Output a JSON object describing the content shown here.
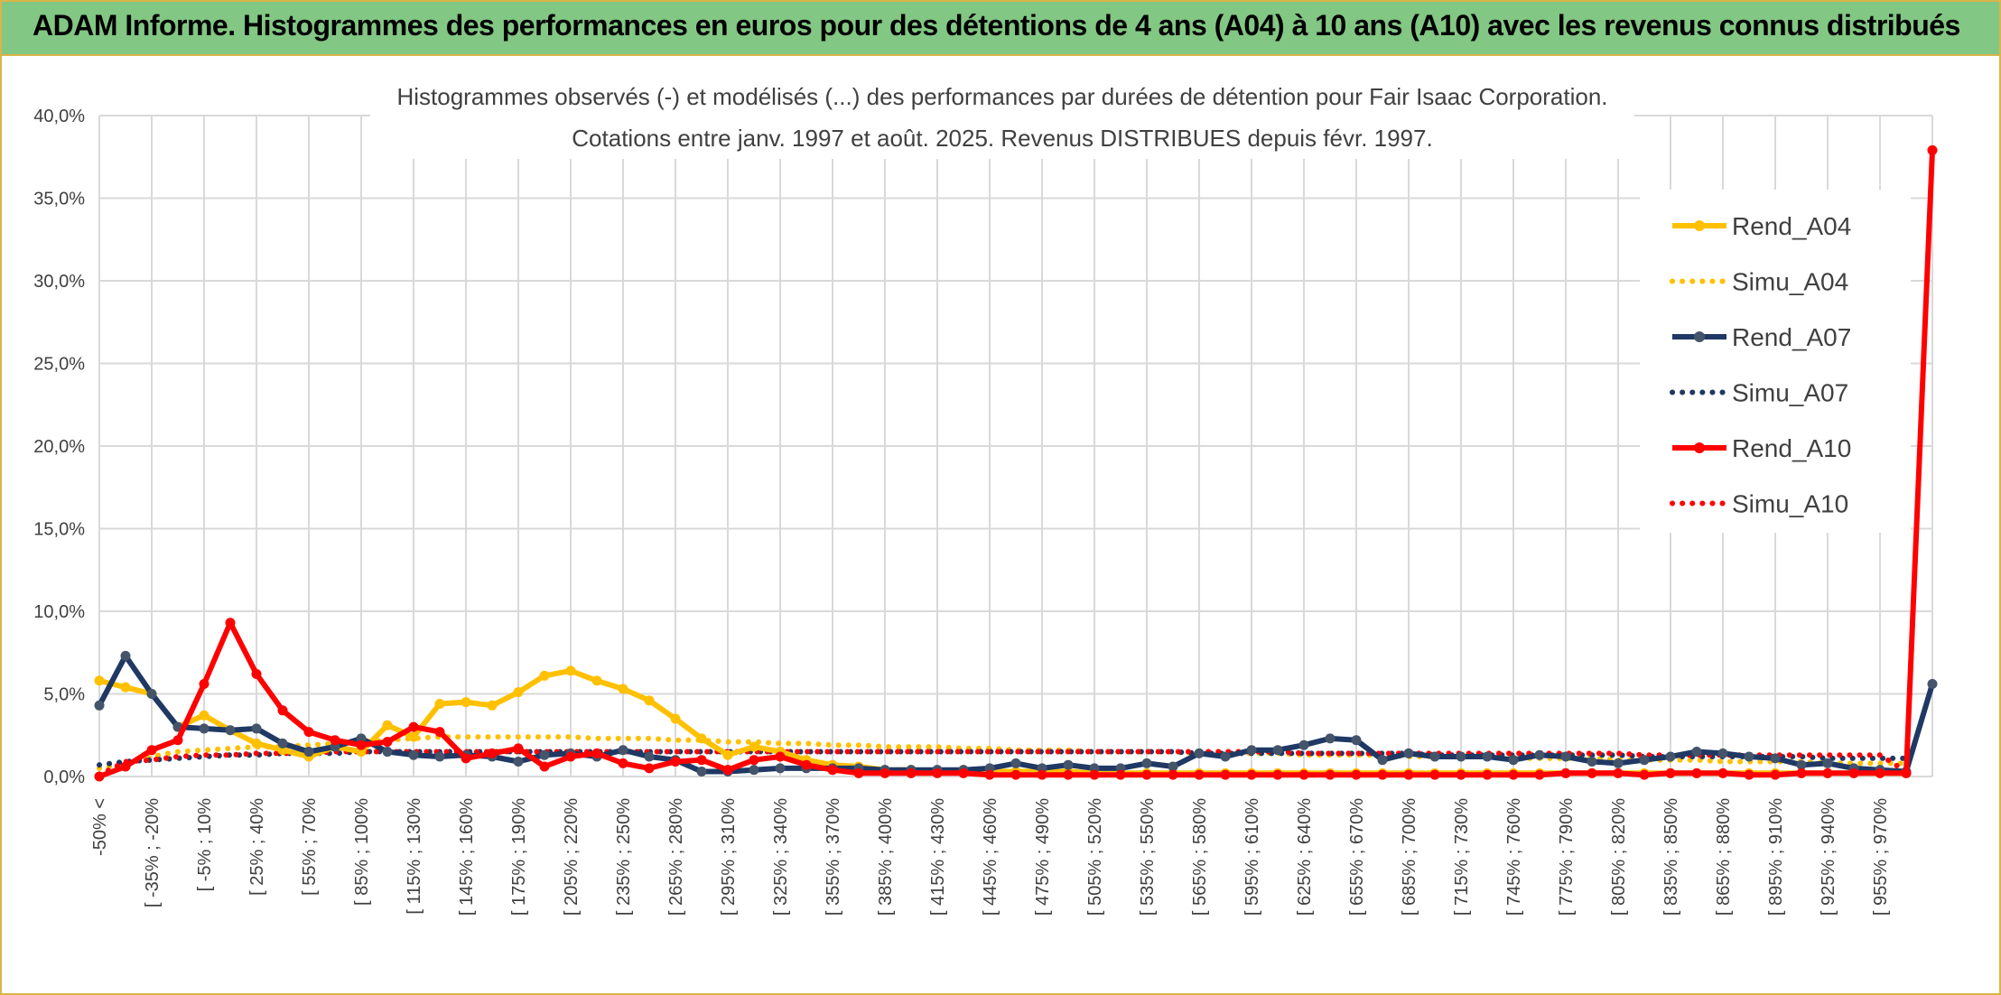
{
  "banner": {
    "title": "ADAM Informe. Histogrammes des performances en euros pour des détentions de 4 ans (A04) à 10 ans (A10) avec les revenus connus distribués"
  },
  "colors": {
    "a04": "#ffc000",
    "a07": "#1f3864",
    "a07_marker": "#44546a",
    "a10": "#ff0000",
    "grid": "#d9d9d9",
    "banner": "#82c783",
    "border": "#d9b54a"
  },
  "chart_data": {
    "type": "line",
    "title": "Histogrammes observés (-) et modélisés (...) des performances par durées de détention pour Fair Isaac Corporation.",
    "subtitle": "Cotations entre janv. 1997 et août. 2025. Revenus DISTRIBUES depuis févr. 1997.",
    "xlabel": "",
    "ylabel": "",
    "ylim": [
      0,
      40
    ],
    "y_ticks": [
      "0,0%",
      "5,0%",
      "10,0%",
      "15,0%",
      "20,0%",
      "25,0%",
      "30,0%",
      "35,0%",
      "40,0%"
    ],
    "grid": true,
    "legend_position": "right",
    "x_tick_labels": [
      "-50% <",
      "[ -35% ; -20%",
      "[ -5% ; 10%",
      "[ 25% ; 40%",
      "[ 55% ; 70%",
      "[ 85% ; 100%",
      "[ 115% ; 130%",
      "[ 145% ; 160%",
      "[ 175% ; 190%",
      "[ 205% ; 220%",
      "[ 235% ; 250%",
      "[ 265% ; 280%",
      "[ 295% ; 310%",
      "[ 325% ; 340%",
      "[ 355% ; 370%",
      "[ 385% ; 400%",
      "[ 415% ; 430%",
      "[ 445% ; 460%",
      "[ 475% ; 490%",
      "[ 505% ; 520%",
      "[ 535% ; 550%",
      "[ 565% ; 580%",
      "[ 595% ; 610%",
      "[ 625% ; 640%",
      "[ 655% ; 670%",
      "[ 685% ; 700%",
      "[ 715% ; 730%",
      "[ 745% ; 760%",
      "[ 775% ; 790%",
      "[ 805% ; 820%",
      "[ 835% ; 850%",
      "[ 865% ; 880%",
      "[ 895% ; 910%",
      "[ 925% ; 940%",
      "[ 955% ; 970%"
    ],
    "series": [
      {
        "name": "Rend_A04",
        "style": "solid",
        "values": [
          5.8,
          5.4,
          5.0,
          3.0,
          3.7,
          2.8,
          2.0,
          1.6,
          1.2,
          1.8,
          1.5,
          3.1,
          2.4,
          4.4,
          4.5,
          4.3,
          5.1,
          6.1,
          6.4,
          5.8,
          5.3,
          4.6,
          3.5,
          2.3,
          1.3,
          1.8,
          1.5,
          1.0,
          0.7,
          0.6,
          0.4,
          0.4,
          0.3,
          0.4,
          0.3,
          0.3,
          0.3,
          0.3,
          0.2,
          0.2,
          0.2,
          0.2,
          0.2,
          0.2,
          0.2,
          0.2,
          0.2,
          0.2,
          0.2,
          0.2,
          0.2,
          0.2,
          0.2,
          0.2,
          0.2,
          0.2,
          0.2,
          0.2,
          0.2,
          0.2,
          0.2,
          0.2,
          0.2,
          0.2,
          0.2,
          0.2,
          0.2,
          0.2,
          0.2,
          0.2
        ]
      },
      {
        "name": "Simu_A04",
        "style": "dotted",
        "values": [
          0.5,
          0.8,
          1.2,
          1.5,
          1.6,
          1.7,
          1.8,
          1.8,
          1.9,
          2.0,
          2.1,
          2.2,
          2.3,
          2.4,
          2.4,
          2.4,
          2.4,
          2.4,
          2.4,
          2.3,
          2.3,
          2.3,
          2.2,
          2.2,
          2.1,
          2.1,
          2.0,
          2.0,
          1.9,
          1.9,
          1.8,
          1.8,
          1.8,
          1.7,
          1.7,
          1.6,
          1.6,
          1.6,
          1.5,
          1.5,
          1.5,
          1.5,
          1.4,
          1.4,
          1.4,
          1.4,
          1.3,
          1.3,
          1.3,
          1.3,
          1.2,
          1.2,
          1.2,
          1.2,
          1.1,
          1.1,
          1.1,
          1.1,
          1.0,
          1.0,
          1.0,
          1.0,
          0.9,
          0.9,
          0.9,
          0.9,
          0.8,
          0.8,
          0.8,
          0.8
        ]
      },
      {
        "name": "Rend_A07",
        "style": "solid",
        "values": [
          4.3,
          7.3,
          5.0,
          3.0,
          2.9,
          2.8,
          2.9,
          2.0,
          1.5,
          1.8,
          2.3,
          1.5,
          1.3,
          1.2,
          1.3,
          1.2,
          0.9,
          1.3,
          1.4,
          1.2,
          1.6,
          1.2,
          1.0,
          0.3,
          0.3,
          0.4,
          0.5,
          0.5,
          0.5,
          0.5,
          0.4,
          0.4,
          0.4,
          0.4,
          0.5,
          0.8,
          0.5,
          0.7,
          0.5,
          0.5,
          0.8,
          0.6,
          1.4,
          1.2,
          1.6,
          1.6,
          1.9,
          2.3,
          2.2,
          1.0,
          1.4,
          1.2,
          1.2,
          1.2,
          1.0,
          1.3,
          1.2,
          0.9,
          0.8,
          1.0,
          1.2,
          1.5,
          1.4,
          1.2,
          1.1,
          0.7,
          0.8,
          0.5,
          0.4,
          0.3,
          5.6
        ]
      },
      {
        "name": "Simu_A07",
        "style": "dotted",
        "values": [
          0.7,
          0.9,
          1.0,
          1.1,
          1.2,
          1.3,
          1.3,
          1.4,
          1.4,
          1.4,
          1.5,
          1.5,
          1.5,
          1.5,
          1.5,
          1.5,
          1.5,
          1.5,
          1.5,
          1.5,
          1.5,
          1.5,
          1.5,
          1.5,
          1.5,
          1.5,
          1.5,
          1.5,
          1.5,
          1.5,
          1.5,
          1.5,
          1.5,
          1.5,
          1.5,
          1.5,
          1.5,
          1.5,
          1.5,
          1.5,
          1.5,
          1.5,
          1.4,
          1.4,
          1.4,
          1.4,
          1.4,
          1.4,
          1.4,
          1.4,
          1.4,
          1.3,
          1.3,
          1.3,
          1.3,
          1.3,
          1.3,
          1.3,
          1.3,
          1.2,
          1.2,
          1.2,
          1.2,
          1.2,
          1.2,
          1.2,
          1.1,
          1.1,
          1.1,
          1.1
        ]
      },
      {
        "name": "Rend_A10",
        "style": "solid",
        "values": [
          0.0,
          0.6,
          1.6,
          2.2,
          5.6,
          9.3,
          6.2,
          4.0,
          2.7,
          2.2,
          1.9,
          2.1,
          3.0,
          2.7,
          1.1,
          1.4,
          1.7,
          0.6,
          1.2,
          1.4,
          0.8,
          0.5,
          0.9,
          1.0,
          0.4,
          1.0,
          1.2,
          0.7,
          0.4,
          0.2,
          0.2,
          0.2,
          0.2,
          0.2,
          0.1,
          0.1,
          0.1,
          0.1,
          0.1,
          0.1,
          0.1,
          0.1,
          0.1,
          0.1,
          0.1,
          0.1,
          0.1,
          0.1,
          0.1,
          0.1,
          0.1,
          0.1,
          0.1,
          0.1,
          0.1,
          0.1,
          0.2,
          0.2,
          0.2,
          0.1,
          0.2,
          0.2,
          0.2,
          0.1,
          0.1,
          0.2,
          0.2,
          0.2,
          0.2,
          0.2,
          37.9
        ]
      },
      {
        "name": "Simu_A10",
        "style": "dotted",
        "values": [
          0.1,
          0.9,
          1.0,
          1.2,
          1.3,
          1.3,
          1.4,
          1.4,
          1.4,
          1.5,
          1.5,
          1.5,
          1.5,
          1.5,
          1.5,
          1.5,
          1.5,
          1.5,
          1.5,
          1.5,
          1.5,
          1.5,
          1.5,
          1.5,
          1.5,
          1.5,
          1.5,
          1.5,
          1.5,
          1.5,
          1.5,
          1.5,
          1.5,
          1.5,
          1.5,
          1.5,
          1.5,
          1.5,
          1.5,
          1.5,
          1.5,
          1.5,
          1.5,
          1.5,
          1.5,
          1.5,
          1.4,
          1.4,
          1.4,
          1.4,
          1.4,
          1.4,
          1.4,
          1.4,
          1.4,
          1.4,
          1.4,
          1.4,
          1.4,
          1.3,
          1.3,
          1.3,
          1.3,
          1.3,
          1.3,
          1.3,
          1.3,
          1.3,
          1.3,
          0.3
        ]
      }
    ]
  }
}
